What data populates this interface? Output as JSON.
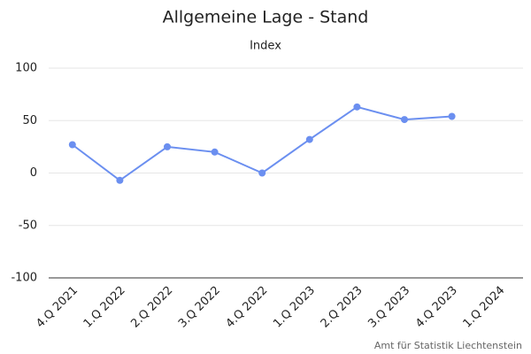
{
  "chart_data": {
    "type": "line",
    "title": "Allgemeine Lage - Stand",
    "subtitle": "Index",
    "categories": [
      "4.Q 2021",
      "1.Q 2022",
      "2.Q 2022",
      "3.Q 2022",
      "4.Q 2022",
      "1.Q 2023",
      "2.Q 2023",
      "3.Q 2023",
      "4.Q 2023",
      "1.Q 2024"
    ],
    "series": [
      {
        "name": "Index",
        "color": "#6b8ff0",
        "values": [
          27,
          -7,
          25,
          20,
          0,
          32,
          63,
          51,
          54,
          null
        ]
      }
    ],
    "ylim": [
      -100,
      100
    ],
    "yticks": [
      -100,
      -50,
      0,
      50,
      100
    ],
    "grid": true,
    "source": "Amt für Statistik Liechtenstein"
  }
}
